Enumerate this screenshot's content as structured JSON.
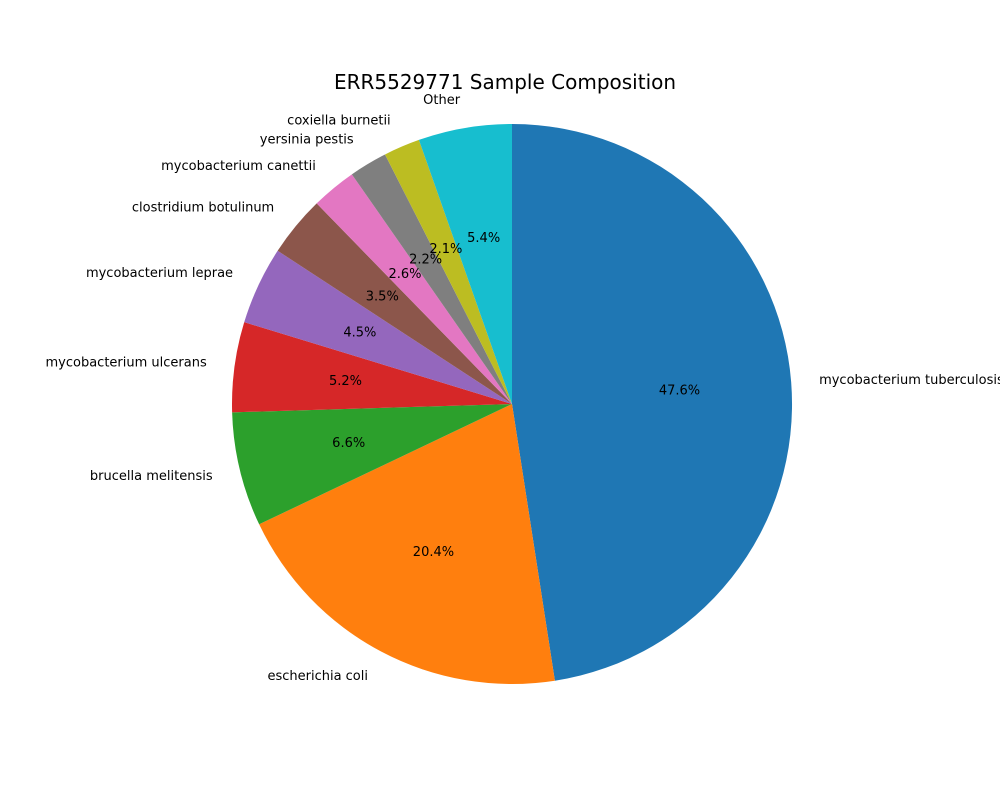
{
  "chart_data": {
    "type": "pie",
    "title": "ERR5529771 Sample Composition",
    "start_angle_deg": 90,
    "direction": "clockwise",
    "slices": [
      {
        "label": "mycobacterium tuberculosis",
        "value": 47.6,
        "pct_label": "47.6%",
        "color": "#1f77b4"
      },
      {
        "label": "escherichia coli",
        "value": 20.4,
        "pct_label": "20.4%",
        "color": "#ff7f0e"
      },
      {
        "label": "brucella melitensis",
        "value": 6.6,
        "pct_label": "6.6%",
        "color": "#2ca02c"
      },
      {
        "label": "mycobacterium ulcerans",
        "value": 5.2,
        "pct_label": "5.2%",
        "color": "#d62728"
      },
      {
        "label": "mycobacterium leprae",
        "value": 4.5,
        "pct_label": "4.5%",
        "color": "#9467bd"
      },
      {
        "label": "clostridium botulinum",
        "value": 3.5,
        "pct_label": "3.5%",
        "color": "#8c564b"
      },
      {
        "label": "mycobacterium canettii",
        "value": 2.6,
        "pct_label": "2.6%",
        "color": "#e377c2"
      },
      {
        "label": "yersinia pestis",
        "value": 2.2,
        "pct_label": "2.2%",
        "color": "#7f7f7f"
      },
      {
        "label": "coxiella burnetii",
        "value": 2.1,
        "pct_label": "2.1%",
        "color": "#bcbd22"
      },
      {
        "label": "Other",
        "value": 5.4,
        "pct_label": "5.4%",
        "color": "#17becf"
      }
    ]
  }
}
